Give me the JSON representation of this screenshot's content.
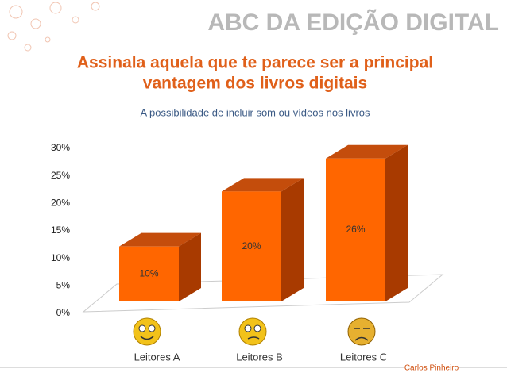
{
  "header": "ABC DA EDIÇÃO DIGITAL",
  "footer": "Carlos Pinheiro",
  "chart_data": {
    "type": "bar3d",
    "title": [
      "Assinala aquela que te parece ser a principal",
      "vantagem dos livros digitais"
    ],
    "subtitle": "A possibilidade de incluir som ou vídeos nos livros",
    "categories": [
      "Leitores A",
      "Leitores B",
      "Leitores C"
    ],
    "values": [
      10,
      20,
      26
    ],
    "value_labels": [
      "10%",
      "20%",
      "26%"
    ],
    "color": "#ff6600",
    "ylim": [
      0,
      30
    ],
    "yticks": [
      {
        "value": 0,
        "label": "0%"
      },
      {
        "value": 5,
        "label": "5%"
      },
      {
        "value": 10,
        "label": "10%"
      },
      {
        "value": 15,
        "label": "15%"
      },
      {
        "value": 20,
        "label": "20%"
      },
      {
        "value": 25,
        "label": "25%"
      },
      {
        "value": 30,
        "label": "30%"
      }
    ]
  }
}
